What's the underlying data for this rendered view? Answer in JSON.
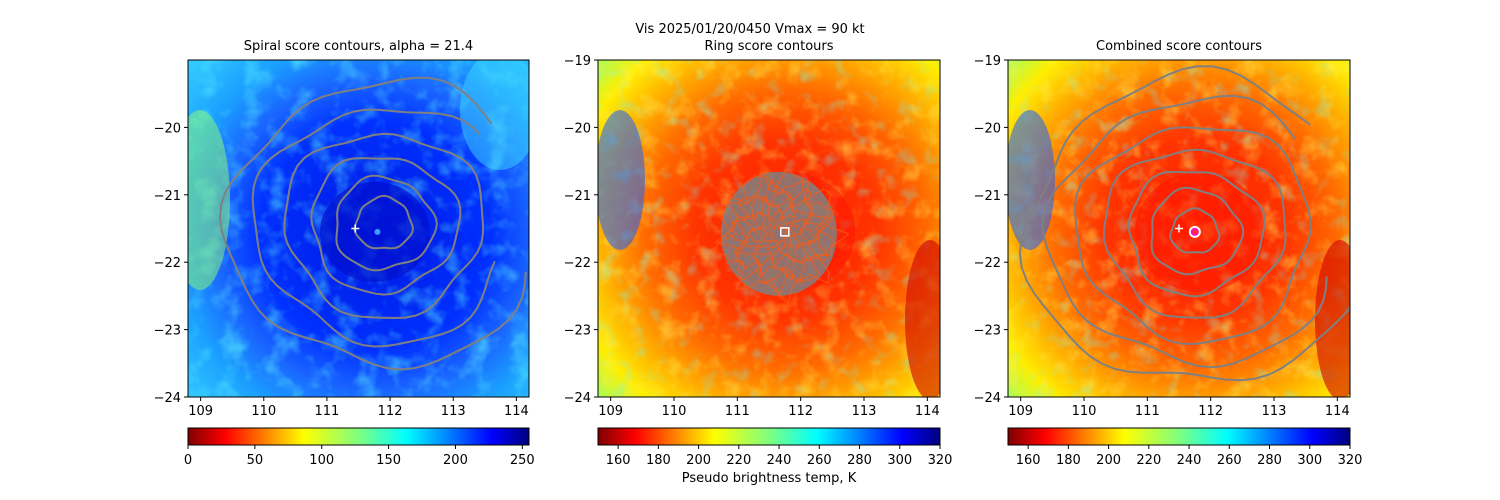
{
  "suptitle": "Vis  2025/01/20/0450    Vmax = 90 kt",
  "chart_data": [
    {
      "type": "heatmap",
      "title": "Spiral score contours, alpha = 21.4",
      "xlim": [
        108.8,
        114.2
      ],
      "ylim": [
        -24,
        -19
      ],
      "x_ticks": [
        "109",
        "110",
        "111",
        "112",
        "113",
        "114"
      ],
      "y_ticks": [
        "−20",
        "−21",
        "−22",
        "−23",
        "−24"
      ],
      "y_tick_values": [
        -20,
        -21,
        -22,
        -23,
        -24
      ],
      "x_tick_values": [
        109,
        110,
        111,
        112,
        113,
        114
      ],
      "colormap": "jet_r",
      "colorbar": {
        "range": [
          0,
          255
        ],
        "ticks": [
          "0",
          "50",
          "100",
          "150",
          "200",
          "250"
        ],
        "tick_values": [
          0,
          50,
          100,
          150,
          200,
          250
        ],
        "label": ""
      },
      "contour_color": "#808080",
      "markers": [
        {
          "type": "plus",
          "x": 111.45,
          "y": -21.5,
          "color": "#ffffff"
        },
        {
          "type": "dot",
          "x": 111.8,
          "y": -21.55,
          "color": "#3aa0ff"
        }
      ]
    },
    {
      "type": "heatmap",
      "title": "Ring score contours",
      "xlim": [
        108.8,
        114.2
      ],
      "ylim": [
        -24,
        -19
      ],
      "x_ticks": [
        "109",
        "110",
        "111",
        "112",
        "113",
        "114"
      ],
      "y_ticks": [
        "−19",
        "−20",
        "−21",
        "−22",
        "−23",
        "−24"
      ],
      "y_tick_values": [
        -19,
        -20,
        -21,
        -22,
        -23,
        -24
      ],
      "x_tick_values": [
        109,
        110,
        111,
        112,
        113,
        114
      ],
      "colormap": "jet_r",
      "colorbar": {
        "range": [
          150,
          320
        ],
        "ticks": [
          "160",
          "180",
          "200",
          "220",
          "240",
          "260",
          "280",
          "300",
          "320"
        ],
        "tick_values": [
          160,
          180,
          200,
          220,
          240,
          260,
          280,
          300,
          320
        ],
        "label": "Pseudo brightness temp, K"
      },
      "contour_color": "#808080",
      "markers": [
        {
          "type": "square",
          "x": 111.75,
          "y": -21.55,
          "color": "#ffffff"
        }
      ]
    },
    {
      "type": "heatmap",
      "title": "Combined score contours",
      "xlim": [
        108.8,
        114.2
      ],
      "ylim": [
        -24,
        -19
      ],
      "x_ticks": [
        "109",
        "110",
        "111",
        "112",
        "113",
        "114"
      ],
      "y_ticks": [
        "−19",
        "−20",
        "−21",
        "−22",
        "−23",
        "−24"
      ],
      "y_tick_values": [
        -19,
        -20,
        -21,
        -22,
        -23,
        -24
      ],
      "x_tick_values": [
        109,
        110,
        111,
        112,
        113,
        114
      ],
      "colormap": "jet_r",
      "colorbar": {
        "range": [
          150,
          320
        ],
        "ticks": [
          "160",
          "180",
          "200",
          "220",
          "240",
          "260",
          "280",
          "300",
          "320"
        ],
        "tick_values": [
          160,
          180,
          200,
          220,
          240,
          260,
          280,
          300,
          320
        ],
        "label": ""
      },
      "contour_color": "#808080",
      "markers": [
        {
          "type": "plus",
          "x": 111.5,
          "y": -21.5,
          "color": "#ffffff"
        },
        {
          "type": "circle",
          "x": 111.75,
          "y": -21.55,
          "color": "#ff00ff"
        }
      ]
    }
  ]
}
